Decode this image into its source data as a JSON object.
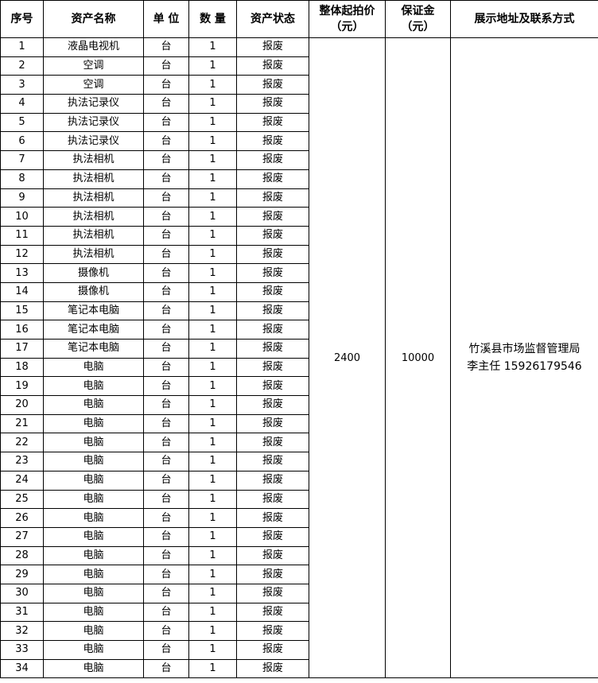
{
  "headers": [
    "序号",
    "资产名称",
    "单 位",
    "数 量",
    "资产状态",
    "整体起拍价\n（元）",
    "保证金\n（元）",
    "展示地址及联系方式"
  ],
  "rows": [
    [
      "1",
      "液晶电视机",
      "台",
      "1",
      "报废"
    ],
    [
      "2",
      "空调",
      "台",
      "1",
      "报废"
    ],
    [
      "3",
      "空调",
      "台",
      "1",
      "报废"
    ],
    [
      "4",
      "执法记录仪",
      "台",
      "1",
      "报废"
    ],
    [
      "5",
      "执法记录仪",
      "台",
      "1",
      "报废"
    ],
    [
      "6",
      "执法记录仪",
      "台",
      "1",
      "报废"
    ],
    [
      "7",
      "执法相机",
      "台",
      "1",
      "报废"
    ],
    [
      "8",
      "执法相机",
      "台",
      "1",
      "报废"
    ],
    [
      "9",
      "执法相机",
      "台",
      "1",
      "报废"
    ],
    [
      "10",
      "执法相机",
      "台",
      "1",
      "报废"
    ],
    [
      "11",
      "执法相机",
      "台",
      "1",
      "报废"
    ],
    [
      "12",
      "执法相机",
      "台",
      "1",
      "报废"
    ],
    [
      "13",
      "摄像机",
      "台",
      "1",
      "报废"
    ],
    [
      "14",
      "摄像机",
      "台",
      "1",
      "报废"
    ],
    [
      "15",
      "笔记本电脑",
      "台",
      "1",
      "报废"
    ],
    [
      "16",
      "笔记本电脑",
      "台",
      "1",
      "报废"
    ],
    [
      "17",
      "笔记本电脑",
      "台",
      "1",
      "报废"
    ],
    [
      "18",
      "电脑",
      "台",
      "1",
      "报废"
    ],
    [
      "19",
      "电脑",
      "台",
      "1",
      "报废"
    ],
    [
      "20",
      "电脑",
      "台",
      "1",
      "报废"
    ],
    [
      "21",
      "电脑",
      "台",
      "1",
      "报废"
    ],
    [
      "22",
      "电脑",
      "台",
      "1",
      "报废"
    ],
    [
      "23",
      "电脑",
      "台",
      "1",
      "报废"
    ],
    [
      "24",
      "电脑",
      "台",
      "1",
      "报废"
    ],
    [
      "25",
      "电脑",
      "台",
      "1",
      "报废"
    ],
    [
      "26",
      "电脑",
      "台",
      "1",
      "报废"
    ],
    [
      "27",
      "电脑",
      "台",
      "1",
      "报废"
    ],
    [
      "28",
      "电脑",
      "台",
      "1",
      "报废"
    ],
    [
      "29",
      "电脑",
      "台",
      "1",
      "报废"
    ],
    [
      "30",
      "电脑",
      "台",
      "1",
      "报废"
    ],
    [
      "31",
      "电脑",
      "台",
      "1",
      "报废"
    ],
    [
      "32",
      "电脑",
      "台",
      "1",
      "报废"
    ],
    [
      "33",
      "电脑",
      "台",
      "1",
      "报废"
    ],
    [
      "34",
      "电脑",
      "台",
      "1",
      "报废"
    ]
  ],
  "starting_price": "2400",
  "deposit": "10000",
  "contact_line1": "竹溪县市场监督管理局",
  "contact_line2": "李主任 15926179546"
}
